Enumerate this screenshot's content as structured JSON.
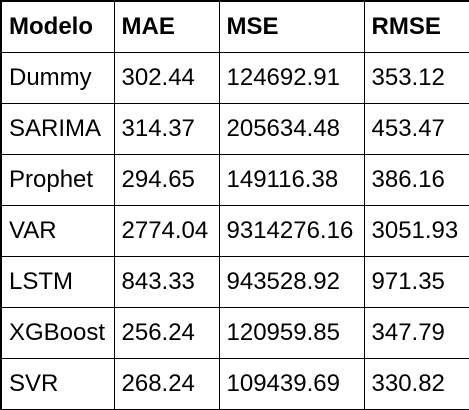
{
  "table": {
    "headers": [
      "Modelo",
      "MAE",
      "MSE",
      "RMSE"
    ],
    "rows": [
      [
        "Dummy",
        "302.44",
        "124692.91",
        "353.12"
      ],
      [
        "SARIMA",
        "314.37",
        "205634.48",
        "453.47"
      ],
      [
        "Prophet",
        "294.65",
        "149116.38",
        "386.16"
      ],
      [
        "VAR",
        "2774.04",
        "9314276.16",
        "3051.93"
      ],
      [
        "LSTM",
        "843.33",
        "943528.92",
        "971.35"
      ],
      [
        "XGBoost",
        "256.24",
        "120959.85",
        "347.79"
      ],
      [
        "SVR",
        "268.24",
        "109439.69",
        "330.82"
      ]
    ]
  }
}
